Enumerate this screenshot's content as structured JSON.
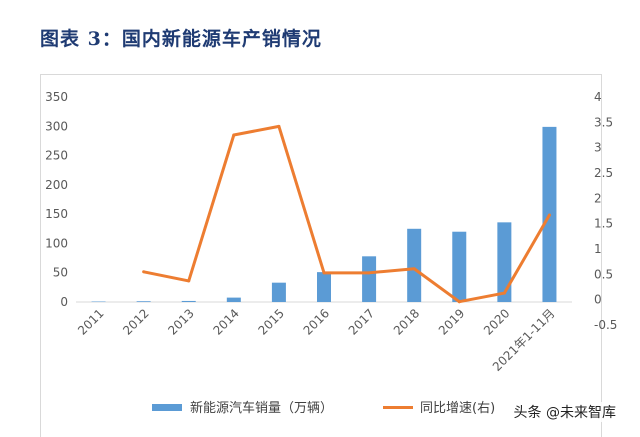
{
  "figure_title": "图表 3：国内新能源车产销情况",
  "watermark": "头条 @未来智库",
  "colors": {
    "bar": "#5b9bd5",
    "line": "#ed7d31",
    "axis": "#d9d9d9",
    "text": "#595959",
    "title": "#1f3b73"
  },
  "chart_data": {
    "type": "bar",
    "title": "",
    "categories": [
      "2011",
      "2012",
      "2013",
      "2014",
      "2015",
      "2016",
      "2017",
      "2018",
      "2019",
      "2020",
      "2021年1-11月"
    ],
    "series": [
      {
        "name": "新能源汽车销量（万辆）",
        "type": "bar",
        "axis": "left",
        "values": [
          0.8,
          1.3,
          1.8,
          7.5,
          33,
          51,
          78,
          125,
          120,
          136,
          299
        ]
      },
      {
        "name": "同比增速(右)",
        "type": "line",
        "axis": "right",
        "values": [
          null,
          0.55,
          0.37,
          3.25,
          3.42,
          0.53,
          0.53,
          0.61,
          -0.04,
          0.13,
          1.67
        ]
      }
    ],
    "y_left": {
      "min": 0,
      "max": 350,
      "ticks": [
        0,
        50,
        100,
        150,
        200,
        250,
        300,
        350
      ]
    },
    "y_right": {
      "min": -0.5,
      "max": 4,
      "ticks": [
        "-0.5",
        "0",
        "0.5",
        "1",
        "1.5",
        "2",
        "2.5",
        "3",
        "3.5",
        "4"
      ]
    },
    "legend_position": "bottom",
    "grid": false
  }
}
